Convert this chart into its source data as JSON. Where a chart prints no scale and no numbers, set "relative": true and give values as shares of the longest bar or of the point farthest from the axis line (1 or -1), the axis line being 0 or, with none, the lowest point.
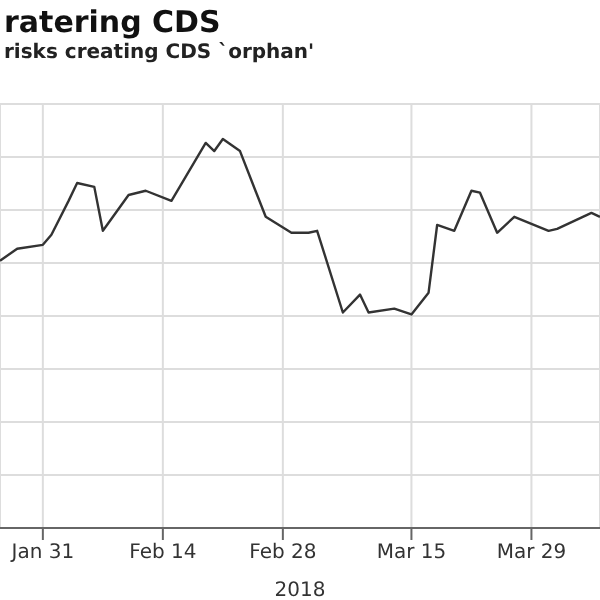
{
  "chart_data": {
    "type": "line",
    "title": "ratering CDS",
    "subtitle": "risks creating CDS `orphan'",
    "xlabel": "2018",
    "relative": true,
    "grid": true,
    "marker": "none",
    "line_style": "solid",
    "x": [
      "2018-01-26",
      "2018-01-28",
      "2018-01-31",
      "2018-02-01",
      "2018-02-03",
      "2018-02-04",
      "2018-02-06",
      "2018-02-07",
      "2018-02-10",
      "2018-02-12",
      "2018-02-15",
      "2018-02-19",
      "2018-02-20",
      "2018-02-21",
      "2018-02-23",
      "2018-02-25",
      "2018-02-26",
      "2018-03-01",
      "2018-03-03",
      "2018-03-04",
      "2018-03-07",
      "2018-03-09",
      "2018-03-10",
      "2018-03-13",
      "2018-03-15",
      "2018-03-17",
      "2018-03-18",
      "2018-03-20",
      "2018-03-22",
      "2018-03-23",
      "2018-03-25",
      "2018-03-27",
      "2018-03-31",
      "2018-04-01",
      "2018-04-05",
      "2018-04-06"
    ],
    "series": [
      {
        "color": "#333333",
        "values": [
          0.687,
          0.718,
          0.728,
          0.754,
          0.841,
          0.887,
          0.877,
          0.764,
          0.856,
          0.867,
          0.841,
          0.99,
          0.969,
          1,
          0.969,
          0.856,
          0.8,
          0.759,
          0.759,
          0.764,
          0.554,
          0.6,
          0.554,
          0.564,
          0.549,
          0.605,
          0.779,
          0.764,
          0.867,
          0.862,
          0.759,
          0.8,
          0.764,
          0.769,
          0.81,
          0.8
        ]
      }
    ],
    "xlim": [
      "2018-01-26",
      "2018-04-06"
    ],
    "xticks": [
      {
        "value": "2018-01-31",
        "label": "Jan 31"
      },
      {
        "value": "2018-02-14",
        "label": "Feb 14"
      },
      {
        "value": "2018-02-28",
        "label": "Feb 28"
      },
      {
        "value": "2018-03-15",
        "label": "Mar 15"
      },
      {
        "value": "2018-03-29",
        "label": "Mar 29"
      }
    ]
  }
}
